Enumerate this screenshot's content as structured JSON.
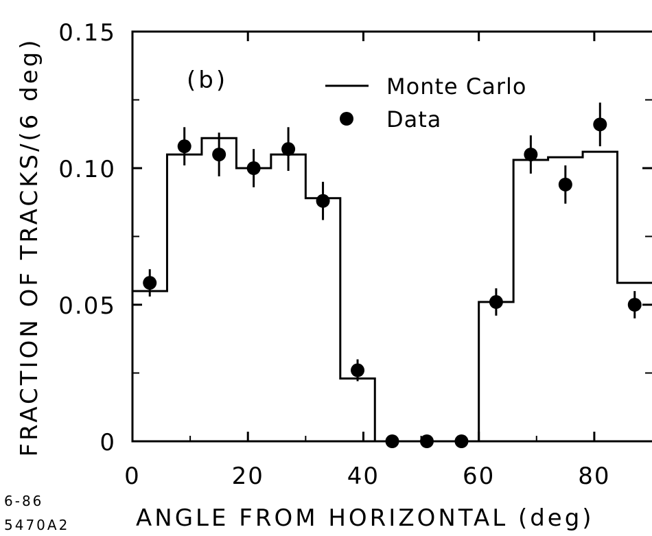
{
  "chart_data": {
    "type": "line",
    "panel_label": "(b)",
    "xlabel": "ANGLE FROM HORIZONTAL (deg)",
    "ylabel": "FRACTION OF TRACKS/(6 deg)",
    "xlim": [
      0,
      90
    ],
    "ylim": [
      0,
      0.15
    ],
    "x_ticks": [
      0,
      20,
      40,
      60,
      80
    ],
    "x_tick_labels": [
      "0",
      "20",
      "40",
      "60",
      "80"
    ],
    "y_ticks": [
      0,
      0.05,
      0.1,
      0.15
    ],
    "y_tick_labels": [
      "0",
      "0.05",
      "0.10",
      "0.15"
    ],
    "legend": {
      "placement": "top-right",
      "entries": [
        "Monte Carlo",
        "Data"
      ]
    },
    "series": [
      {
        "name": "Monte Carlo",
        "style": "step",
        "bin_edges": [
          0,
          6,
          12,
          18,
          24,
          30,
          36,
          42,
          48,
          54,
          60,
          66,
          72,
          78,
          84,
          90
        ],
        "values": [
          0.055,
          0.105,
          0.111,
          0.1,
          0.105,
          0.089,
          0.023,
          0,
          0,
          0,
          0.051,
          0.103,
          0.104,
          0.106,
          0.058
        ]
      },
      {
        "name": "Data",
        "style": "points",
        "x": [
          3,
          9,
          15,
          21,
          27,
          33,
          39,
          45,
          51,
          57,
          63,
          69,
          75,
          81,
          87
        ],
        "y": [
          0.058,
          0.108,
          0.105,
          0.1,
          0.107,
          0.088,
          0.026,
          0,
          0,
          0,
          0.051,
          0.105,
          0.094,
          0.116,
          0.05
        ],
        "err": [
          0.005,
          0.007,
          0.008,
          0.007,
          0.008,
          0.007,
          0.004,
          0,
          0,
          0,
          0.005,
          0.007,
          0.007,
          0.008,
          0.005
        ]
      }
    ]
  },
  "notes": {
    "date_code": "6-86",
    "figure_code": "5470A2"
  },
  "colors": {
    "ink": "#000000",
    "background": "#ffffff"
  }
}
